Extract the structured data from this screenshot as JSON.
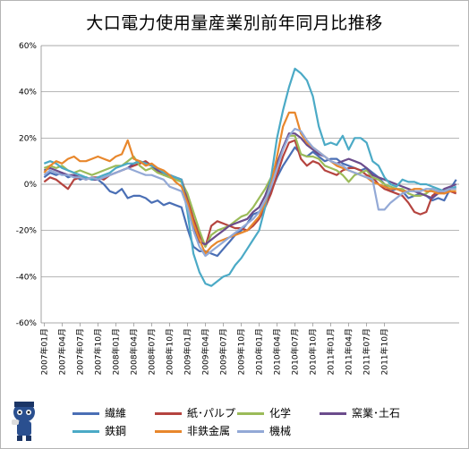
{
  "title": "大口電力使用量産業別前年同月比推移",
  "chart_data": {
    "type": "line",
    "title": "大口電力使用量産業別前年同月比推移",
    "xlabel": "",
    "ylabel": "",
    "ylim": [
      -60,
      60
    ],
    "yticks": [
      "-60%",
      "-40%",
      "-20%",
      "0%",
      "20%",
      "40%",
      "60%"
    ],
    "x_tick_labels": [
      "2007年01月",
      "2007年04月",
      "2007年07月",
      "2007年10月",
      "2008年01月",
      "2008年04月",
      "2008年07月",
      "2008年10月",
      "2009年01月",
      "2009年04月",
      "2009年07月",
      "2009年10月",
      "2010年01月",
      "2010年04月",
      "2010年07月",
      "2010年10月",
      "2011年01月",
      "2011年04月",
      "2011年07月",
      "2011年10月"
    ],
    "legend_position": "bottom",
    "grid": "horizontal",
    "series": [
      {
        "name": "繊維",
        "color": "#4a6fb5",
        "values": [
          3,
          5,
          4,
          5,
          3,
          4,
          2,
          3,
          2,
          2,
          0,
          -3,
          -4,
          -2,
          -6,
          -5,
          -5,
          -6,
          -8,
          -7,
          -9,
          -8,
          -9,
          -10,
          -19,
          -27,
          -29,
          -29,
          -30,
          -31,
          -28,
          -25,
          -22,
          -20,
          -17,
          -13,
          -12,
          -8,
          -3,
          3,
          8,
          12,
          16,
          13,
          12,
          14,
          12,
          10,
          11,
          11,
          9,
          8,
          7,
          6,
          7,
          5,
          3,
          0,
          -3,
          -2,
          -3,
          -6,
          -5,
          -4,
          -5,
          -7,
          -6,
          -7,
          -2,
          2
        ]
      },
      {
        "name": "紙･パルプ",
        "color": "#b5443f",
        "values": [
          1,
          3,
          2,
          0,
          -2,
          2,
          3,
          2,
          3,
          3,
          2,
          4,
          5,
          6,
          7,
          8,
          9,
          10,
          8,
          6,
          4,
          4,
          3,
          2,
          -6,
          -15,
          -22,
          -27,
          -18,
          -16,
          -17,
          -18,
          -19,
          -19,
          -20,
          -18,
          -15,
          -10,
          -4,
          4,
          12,
          18,
          19,
          11,
          8,
          10,
          9,
          6,
          5,
          4,
          6,
          7,
          7,
          6,
          4,
          3,
          0,
          -2,
          -3,
          -4,
          -5,
          -8,
          -12,
          -13,
          -12,
          -5,
          -3,
          -4,
          -3,
          -4
        ]
      },
      {
        "name": "化学",
        "color": "#9bbb59",
        "values": [
          7,
          8,
          7,
          8,
          6,
          5,
          6,
          5,
          4,
          5,
          6,
          7,
          8,
          8,
          10,
          12,
          8,
          6,
          7,
          5,
          4,
          3,
          2,
          1,
          -4,
          -12,
          -20,
          -27,
          -22,
          -20,
          -19,
          -18,
          -16,
          -14,
          -13,
          -10,
          -6,
          -2,
          3,
          9,
          16,
          21,
          21,
          13,
          12,
          12,
          11,
          8,
          7,
          6,
          4,
          1,
          4,
          5,
          6,
          3,
          2,
          0,
          -1,
          -2,
          -2,
          -4,
          -5,
          -5,
          -4,
          -2,
          -3,
          -3,
          -2,
          -2
        ]
      },
      {
        "name": "窯業･土石",
        "color": "#6b4c8c",
        "values": [
          6,
          7,
          6,
          5,
          4,
          4,
          3,
          3,
          2,
          2,
          3,
          4,
          5,
          6,
          7,
          9,
          10,
          9,
          8,
          6,
          5,
          4,
          3,
          2,
          -8,
          -18,
          -25,
          -26,
          -24,
          -22,
          -20,
          -18,
          -17,
          -16,
          -15,
          -12,
          -10,
          -5,
          2,
          9,
          16,
          22,
          22,
          20,
          17,
          15,
          13,
          12,
          10,
          9,
          10,
          11,
          10,
          9,
          7,
          4,
          3,
          2,
          1,
          0,
          -1,
          -2,
          -3,
          -4,
          -5,
          -6,
          -4,
          -2,
          -1,
          0
        ]
      },
      {
        "name": "鉄鋼",
        "color": "#4baac6",
        "values": [
          9,
          10,
          9,
          7,
          6,
          5,
          4,
          3,
          2,
          3,
          4,
          5,
          7,
          8,
          9,
          9,
          10,
          9,
          8,
          7,
          5,
          4,
          3,
          2,
          -12,
          -30,
          -38,
          -43,
          -44,
          -42,
          -40,
          -39,
          -35,
          -32,
          -28,
          -24,
          -20,
          -10,
          3,
          20,
          32,
          42,
          50,
          48,
          45,
          38,
          25,
          17,
          18,
          17,
          21,
          15,
          20,
          20,
          18,
          10,
          8,
          3,
          0,
          -1,
          2,
          1,
          1,
          0,
          0,
          -1,
          -2,
          -3,
          -2,
          -1
        ]
      },
      {
        "name": "非鉄金属",
        "color": "#e8872c",
        "values": [
          5,
          8,
          10,
          9,
          11,
          12,
          10,
          10,
          11,
          12,
          11,
          10,
          12,
          13,
          19,
          11,
          10,
          8,
          9,
          7,
          6,
          4,
          1,
          -1,
          -8,
          -17,
          -24,
          -30,
          -27,
          -25,
          -24,
          -23,
          -22,
          -21,
          -20,
          -17,
          -14,
          -8,
          0,
          12,
          25,
          31,
          31,
          22,
          18,
          16,
          14,
          12,
          10,
          8,
          7,
          6,
          5,
          4,
          3,
          1,
          0,
          -1,
          -2,
          -2,
          -3,
          -3,
          -2,
          -2,
          -3,
          -3,
          -4,
          -4,
          -3,
          -3
        ]
      },
      {
        "name": "機械",
        "color": "#93a9d6",
        "values": [
          4,
          6,
          5,
          4,
          4,
          3,
          3,
          2,
          3,
          2,
          3,
          4,
          5,
          6,
          7,
          6,
          5,
          4,
          4,
          3,
          2,
          -1,
          -2,
          -3,
          -10,
          -20,
          -27,
          -31,
          -29,
          -27,
          -25,
          -23,
          -21,
          -19,
          -17,
          -15,
          -12,
          -7,
          -1,
          7,
          15,
          21,
          24,
          23,
          19,
          16,
          14,
          12,
          10,
          9,
          8,
          6,
          5,
          4,
          3,
          2,
          -11,
          -11,
          -8,
          -6,
          -4,
          -3,
          -3,
          -3,
          -2,
          -2,
          -3,
          -3,
          -2,
          -2
        ]
      }
    ]
  },
  "mascot": {
    "icon": "mascot-character-icon"
  }
}
